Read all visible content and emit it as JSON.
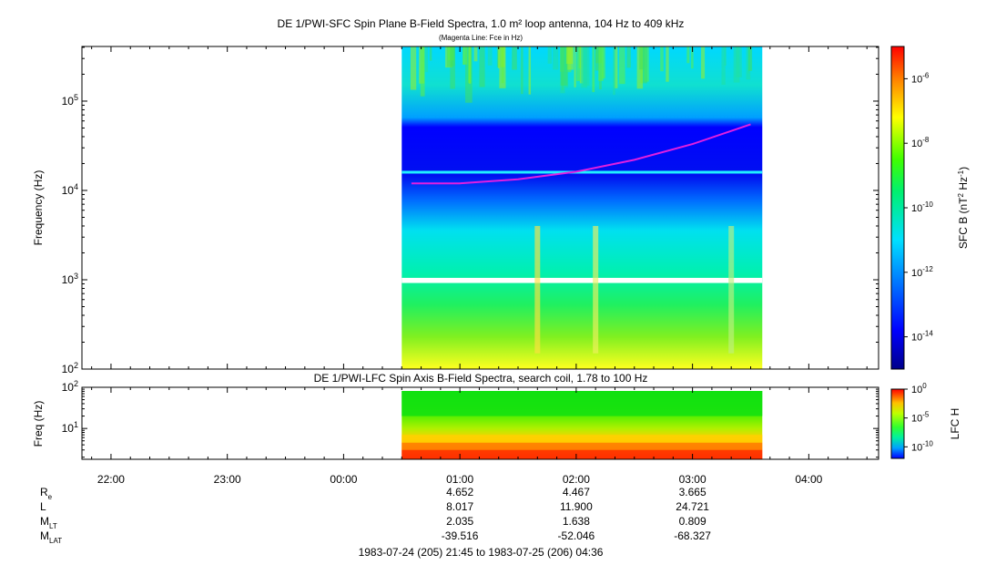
{
  "chart_data": [
    {
      "type": "heatmap",
      "title": "DE 1/PWI-SFC  Spin Plane B-Field Spectra, 1.0 m² loop antenna, 104 Hz to 409 kHz",
      "subtitle": "(Magenta Line: Fce in Hz)",
      "ylabel": "Frequency (Hz)",
      "yscale": "log",
      "ylim": [
        100,
        409000
      ],
      "yticks": [
        "10^2",
        "10^3",
        "10^4",
        "10^5"
      ],
      "xlim": [
        "21:45",
        "04:36"
      ],
      "data_coverage": [
        "00:30",
        "03:36"
      ],
      "colorbar": {
        "label": "SFC B (nT^2 Hz^-1)",
        "scale": "log",
        "range": [
          1e-15,
          1e-05
        ],
        "ticks": [
          "10^-6",
          "10^-8",
          "10^-10",
          "10^-12",
          "10^-14"
        ]
      },
      "fce_line": {
        "label": "Fce",
        "color": "#e020e0",
        "time": [
          "00:35",
          "01:00",
          "01:30",
          "02:00",
          "02:30",
          "03:00",
          "03:30"
        ],
        "freq_hz": [
          12000,
          12000,
          13300,
          16200,
          22000,
          33000,
          55000
        ]
      },
      "bright_band_hz": 16000,
      "data_gap_hz": [
        920,
        1050
      ]
    },
    {
      "type": "heatmap",
      "title": "DE 1/PWI-LFC  Spin Axis B-Field Spectra, search coil, 1.78 to 100 Hz",
      "ylabel": "Freq (Hz)",
      "yscale": "log",
      "ylim": [
        1.78,
        100
      ],
      "yticks": [
        "10^1",
        "10^2"
      ],
      "colorbar": {
        "label": "LFC H",
        "scale": "log",
        "range": [
          1e-12,
          1
        ],
        "ticks": [
          "10^0",
          "10^-5",
          "10^-10"
        ]
      }
    }
  ],
  "x_axis": {
    "ticks": [
      "22:00",
      "23:00",
      "00:00",
      "01:00",
      "02:00",
      "03:00",
      "04:00"
    ]
  },
  "ephemeris": {
    "labels": [
      {
        "main": "R",
        "sub": "e"
      },
      {
        "main": "L",
        "sub": ""
      },
      {
        "main": "M",
        "sub": "LT"
      },
      {
        "main": "M",
        "sub": "LAT"
      }
    ],
    "columns": [
      "01:00",
      "02:00",
      "03:00"
    ],
    "rows": [
      [
        "4.652",
        "4.467",
        "3.665"
      ],
      [
        "8.017",
        "11.900",
        "24.721"
      ],
      [
        "2.035",
        "1.638",
        "0.809"
      ],
      [
        "-39.516",
        "-52.046",
        "-68.327"
      ]
    ]
  },
  "footer": "1983-07-24 (205) 21:45 to 1983-07-25 (206) 04:36"
}
